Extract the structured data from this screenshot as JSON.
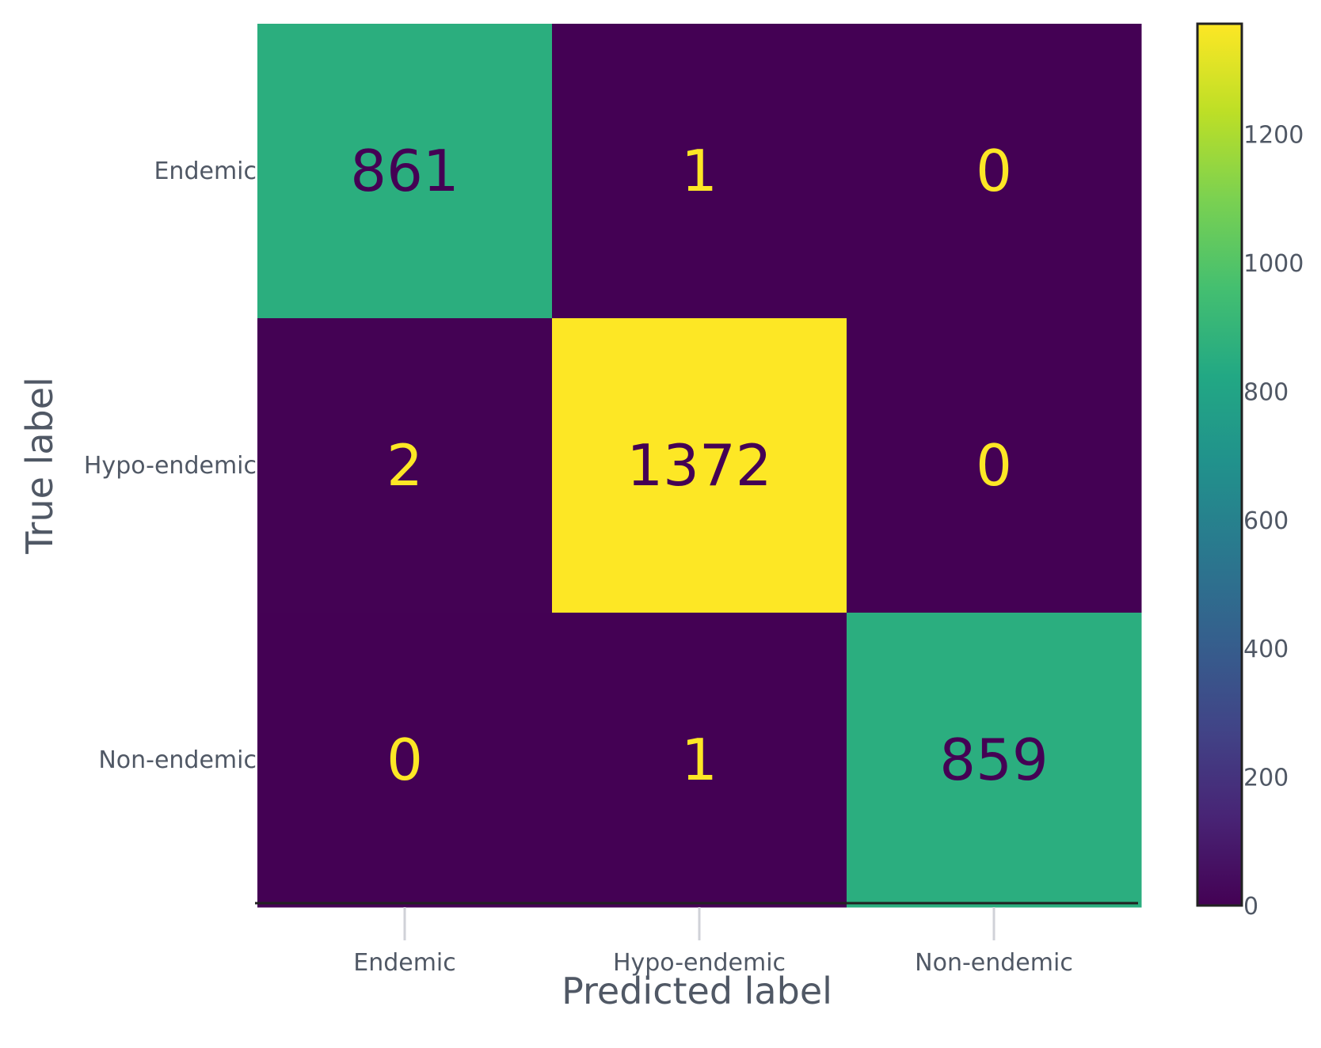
{
  "chart_data": {
    "type": "heatmap",
    "title": "",
    "xlabel": "Predicted label",
    "ylabel": "True label",
    "x_categories": [
      "Endemic",
      "Hypo-endemic",
      "Non-endemic"
    ],
    "y_categories": [
      "Endemic",
      "Hypo-endemic",
      "Non-endemic"
    ],
    "matrix": [
      [
        861,
        1,
        0
      ],
      [
        2,
        1372,
        0
      ],
      [
        0,
        1,
        859
      ]
    ],
    "colormap": "viridis",
    "colorbar": {
      "range": [
        0,
        1372
      ],
      "ticks": [
        0,
        200,
        400,
        600,
        800,
        1000,
        1200
      ]
    },
    "grid": false,
    "colors": {
      "low_text": "#fde725",
      "high_text": "#440154",
      "axis_text": "#505865"
    }
  }
}
